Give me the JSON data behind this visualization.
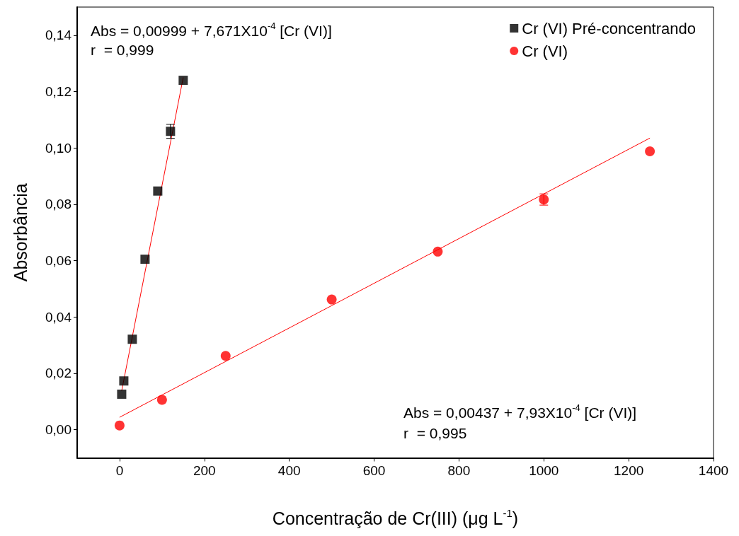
{
  "chart_data": {
    "type": "scatter",
    "xlabel": "Concentração de Cr(III) (μg L$^{-1}$)",
    "ylabel": "Absorbância",
    "xlim": [
      -100,
      1400
    ],
    "xticks": [
      0,
      200,
      400,
      600,
      800,
      1000,
      1200,
      1400
    ],
    "ylim": [
      -0.01,
      0.15
    ],
    "yticks": [
      {
        "value": 0,
        "label": "0,00"
      },
      {
        "value": 0.02,
        "label": "0,02"
      },
      {
        "value": 0.04,
        "label": "0,04"
      },
      {
        "value": 0.06,
        "label": "0,06"
      },
      {
        "value": 0.08,
        "label": "0,08"
      },
      {
        "value": 0.1,
        "label": "0,10"
      },
      {
        "value": 0.12,
        "label": "0,12"
      },
      {
        "value": 0.14,
        "label": "0,14"
      }
    ],
    "grid": false,
    "legend": "top right",
    "series": [
      {
        "name": "Cr (VI) Pré-concentrando",
        "marker": "square",
        "color": "#000000",
        "x": [
          5,
          10,
          30,
          60,
          90,
          120,
          150
        ],
        "values": [
          0.0126,
          0.0173,
          0.0321,
          0.0605,
          0.0847,
          0.1059,
          0.124
        ],
        "errors": [
          null,
          null,
          null,
          null,
          null,
          0.0025,
          null
        ]
      },
      {
        "name": "Cr (VI)",
        "marker": "circle",
        "color": "#ff0000",
        "x": [
          0,
          100,
          250,
          500,
          750,
          1000,
          1250
        ],
        "values": [
          0.0015,
          0.0106,
          0.0262,
          0.0462,
          0.0632,
          0.0817,
          0.0988
        ],
        "errors": [
          null,
          null,
          null,
          null,
          null,
          0.002,
          null
        ]
      },
      {
        "type": "line",
        "marker": "none",
        "color": "#ff0000",
        "x": [
          5,
          150
        ],
        "values": [
          0.0138,
          0.125
        ]
      },
      {
        "type": "line",
        "marker": "none",
        "color": "#ff0000",
        "x": [
          0,
          1250
        ],
        "values": [
          0.0044,
          0.1035
        ]
      }
    ],
    "annotations": [
      "Abs = 0,00999 + 7,671X10$^{-4}$ [Cr (VI)]",
      "r  = 0,999",
      "Abs = 0,00437 + 7,93X10$^{-4}$ [Cr (VI)]",
      "r  = 0,995"
    ]
  }
}
